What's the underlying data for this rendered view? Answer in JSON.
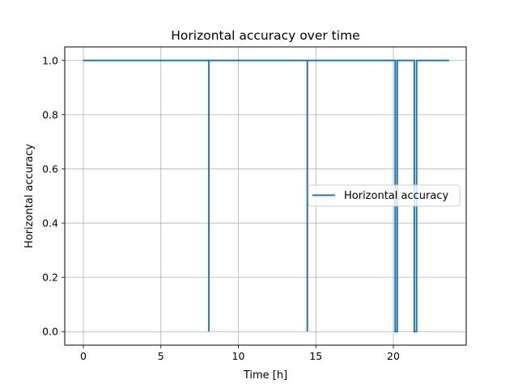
{
  "chart_data": {
    "type": "line",
    "title": "Horizontal accuracy over time",
    "xlabel": "Time [h]",
    "ylabel": "Horizontal accuracy",
    "xlim": [
      -1.2,
      24.7
    ],
    "ylim": [
      -0.05,
      1.05
    ],
    "xticks": [
      0,
      5,
      10,
      15,
      20
    ],
    "yticks": [
      0.0,
      0.2,
      0.4,
      0.6,
      0.8,
      1.0
    ],
    "ytick_labels": [
      "0.0",
      "0.2",
      "0.4",
      "0.6",
      "0.8",
      "1.0"
    ],
    "grid": true,
    "legend_position": "center-right",
    "series": [
      {
        "name": "Horizontal accuracy",
        "color": "#1f77b4",
        "x": [
          0,
          8.1,
          8.1,
          8.1,
          14.45,
          14.45,
          14.45,
          20.12,
          20.12,
          20.25,
          20.25,
          21.35,
          21.35,
          21.5,
          21.5,
          23.6
        ],
        "y": [
          1,
          1,
          0,
          1,
          1,
          0,
          1,
          1,
          0,
          0,
          1,
          1,
          0,
          0,
          1,
          1
        ]
      }
    ]
  }
}
